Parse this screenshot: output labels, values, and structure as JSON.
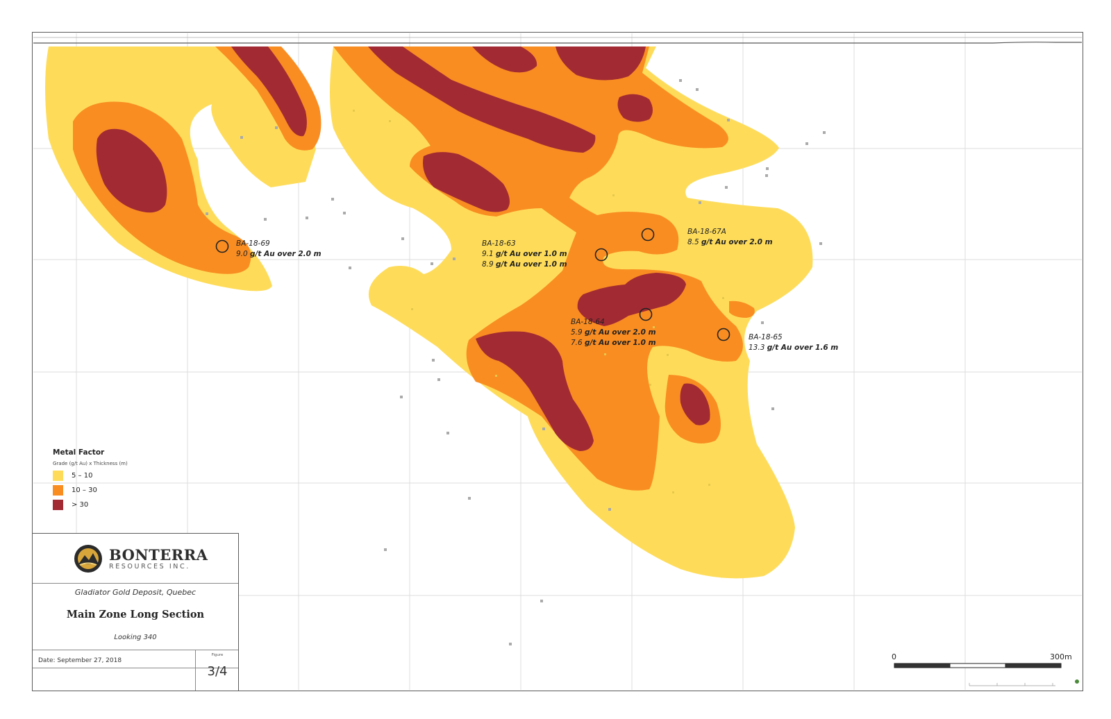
{
  "drill_holes": [
    {
      "id": "BA-18-69",
      "results": [
        {
          "grade": "9.0",
          "rest": "g/t Au over 2.0 m"
        }
      ]
    },
    {
      "id": "BA-18-63",
      "results": [
        {
          "grade": "9.1",
          "rest": "g/t Au over 1.0 m"
        },
        {
          "grade": "8.9",
          "rest": "g/t Au over 1.0 m"
        }
      ]
    },
    {
      "id": "BA-18-67A",
      "results": [
        {
          "grade": "8.5",
          "rest": "g/t Au over 2.0 m"
        }
      ]
    },
    {
      "id": "BA-18-64",
      "results": [
        {
          "grade": "5.9",
          "rest": "g/t Au over 2.0 m"
        },
        {
          "grade": "7.6",
          "rest": "g/t Au over 1.0 m"
        }
      ]
    },
    {
      "id": "BA-18-65",
      "results": [
        {
          "grade": "13.3",
          "rest": "g/t Au over 1.6 m"
        }
      ]
    }
  ],
  "legend": {
    "title": "Metal Factor",
    "subtitle": "Grade (g/t Au) x Thickness (m)",
    "classes": [
      {
        "label": "5 – 10",
        "color": "#fedc5a"
      },
      {
        "label": "10 – 30",
        "color": "#f98d22"
      },
      {
        "label": "> 30",
        "color": "#a22a33"
      }
    ]
  },
  "title_block": {
    "company": "BONTERRA",
    "company_sub": "RESOURCES INC.",
    "deposit": "Gladiator Gold Deposit, Quebec",
    "section": "Main Zone Long Section",
    "looking": "Looking 340",
    "date": "Date: September 27, 2018",
    "figure_label": "Figure",
    "figure_number": "3/4"
  },
  "scale_bar": {
    "start": "0",
    "end": "300m"
  },
  "colors": {
    "low": "#fedc5a",
    "mid": "#f98d22",
    "high": "#a22a33"
  }
}
